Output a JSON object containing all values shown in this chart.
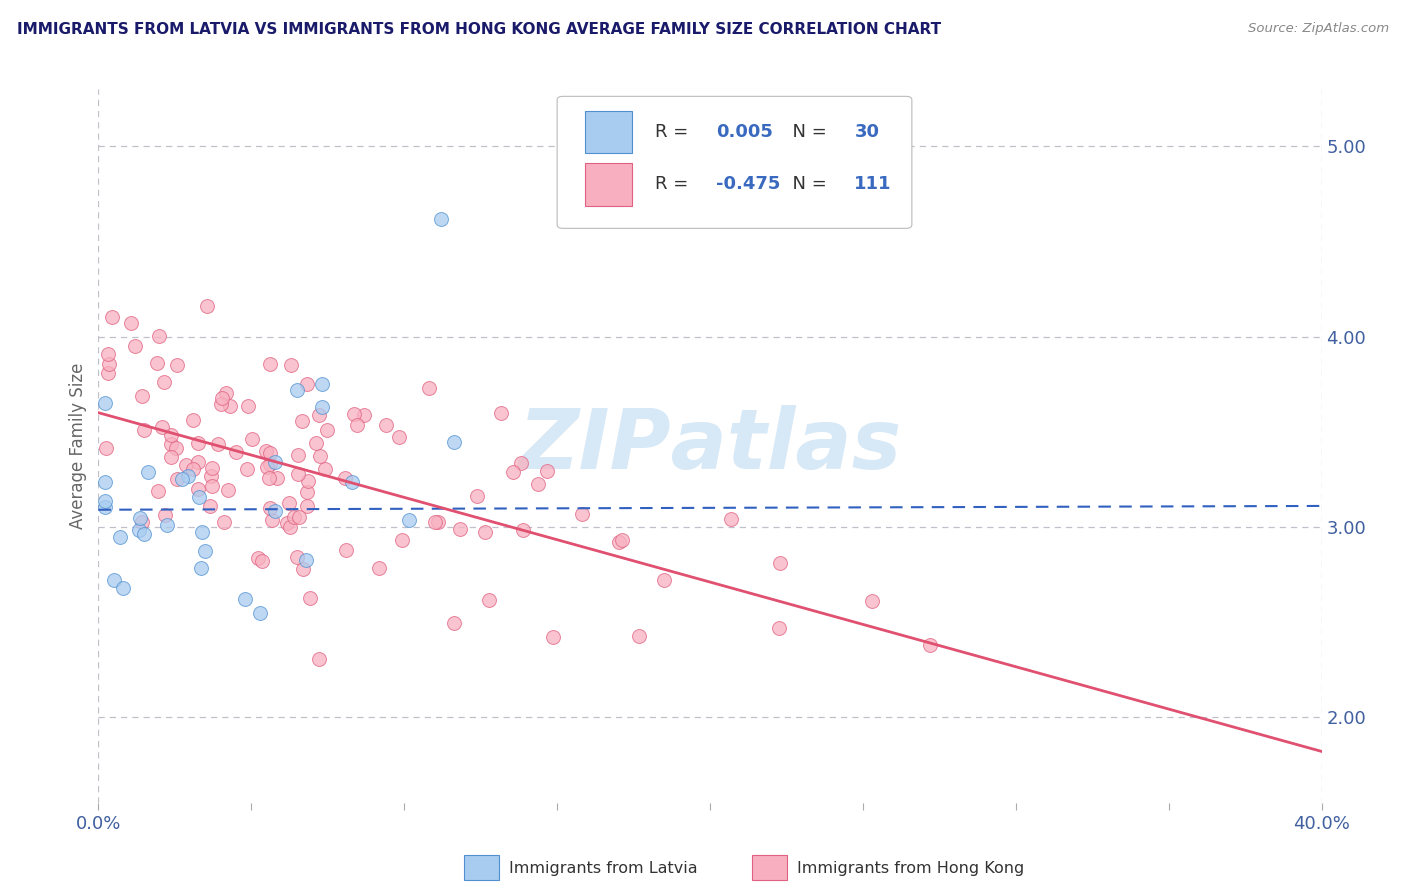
{
  "title": "IMMIGRANTS FROM LATVIA VS IMMIGRANTS FROM HONG KONG AVERAGE FAMILY SIZE CORRELATION CHART",
  "source": "Source: ZipAtlas.com",
  "ylabel": "Average Family Size",
  "xlim": [
    0.0,
    0.4
  ],
  "ylim": [
    1.55,
    5.3
  ],
  "yticks_right": [
    2.0,
    3.0,
    4.0,
    5.0
  ],
  "legend_labels": [
    "Immigrants from Latvia",
    "Immigrants from Hong Kong"
  ],
  "latvia_R": 0.005,
  "latvia_N": 30,
  "hk_R": -0.475,
  "hk_N": 111,
  "latvia_scatter_color": "#a8ccf0",
  "latvia_edge_color": "#5090d0",
  "hk_scatter_color": "#f8b0c0",
  "hk_edge_color": "#e06080",
  "latvia_line_color": "#3060c0",
  "hk_line_color": "#e05070",
  "watermark_color": "#d0e4f5",
  "background_color": "#ffffff",
  "grid_color": "#c0c0cc",
  "title_color": "#1a1a6a",
  "source_color": "#888888",
  "legend_text_color": "#333333",
  "legend_value_color": "#3a6abf",
  "tick_color": "#4060a0",
  "seed": 99
}
